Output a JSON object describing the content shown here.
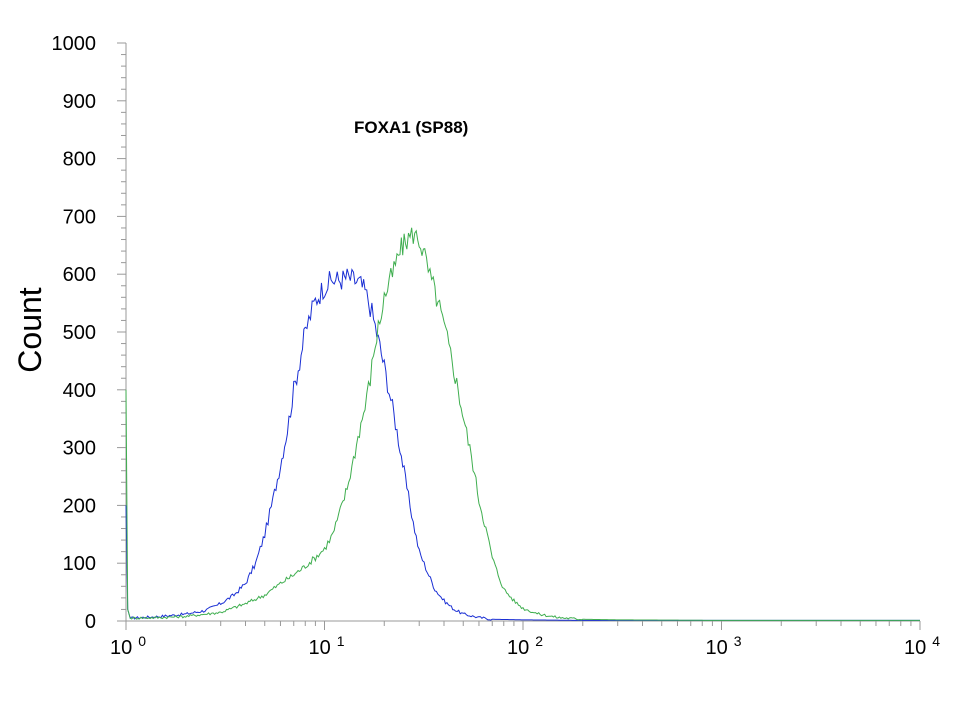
{
  "chart_data": {
    "type": "line",
    "title": "FOXA1 (SP88)",
    "xlabel": "",
    "ylabel": "Count",
    "x_scale": "log",
    "xlim": [
      1,
      10000
    ],
    "ylim": [
      0,
      1000
    ],
    "grid": false,
    "y_ticks": [
      0,
      100,
      200,
      300,
      400,
      500,
      600,
      700,
      800,
      900,
      1000
    ],
    "x_ticks": [
      {
        "value": 1,
        "base": "10",
        "exp": "0"
      },
      {
        "value": 10,
        "base": "10",
        "exp": "1"
      },
      {
        "value": 100,
        "base": "10",
        "exp": "2"
      },
      {
        "value": 1000,
        "base": "10",
        "exp": "3"
      },
      {
        "value": 10000,
        "base": "10",
        "exp": "4"
      }
    ],
    "series": [
      {
        "color": "#1a2fd4",
        "points": [
          [
            1.0,
            200
          ],
          [
            1.02,
            20
          ],
          [
            1.05,
            5
          ],
          [
            1.2,
            6
          ],
          [
            1.5,
            8
          ],
          [
            2.0,
            12
          ],
          [
            2.5,
            18
          ],
          [
            3.0,
            30
          ],
          [
            3.5,
            45
          ],
          [
            4.0,
            65
          ],
          [
            4.5,
            100
          ],
          [
            5.0,
            150
          ],
          [
            5.5,
            210
          ],
          [
            6.0,
            270
          ],
          [
            6.5,
            330
          ],
          [
            7.0,
            400
          ],
          [
            7.5,
            450
          ],
          [
            8.0,
            500
          ],
          [
            8.5,
            530
          ],
          [
            9.0,
            555
          ],
          [
            10.0,
            580
          ],
          [
            11.0,
            590
          ],
          [
            12.0,
            590
          ],
          [
            13.0,
            595
          ],
          [
            14.0,
            590
          ],
          [
            15.0,
            585
          ],
          [
            16.0,
            570
          ],
          [
            17.0,
            545
          ],
          [
            18.0,
            510
          ],
          [
            19.0,
            475
          ],
          [
            20.0,
            440
          ],
          [
            22.0,
            370
          ],
          [
            24.0,
            300
          ],
          [
            26.0,
            230
          ],
          [
            28.0,
            170
          ],
          [
            30.0,
            120
          ],
          [
            33.0,
            85
          ],
          [
            36.0,
            55
          ],
          [
            40.0,
            35
          ],
          [
            45.0,
            20
          ],
          [
            50.0,
            12
          ],
          [
            60.0,
            6
          ],
          [
            70.0,
            3
          ],
          [
            100.0,
            2
          ],
          [
            200.0,
            1
          ],
          [
            1000.0,
            1
          ],
          [
            10000.0,
            1
          ]
        ]
      },
      {
        "color": "#3fae4f",
        "points": [
          [
            1.0,
            400
          ],
          [
            1.02,
            20
          ],
          [
            1.05,
            5
          ],
          [
            1.5,
            6
          ],
          [
            2.0,
            8
          ],
          [
            3.0,
            15
          ],
          [
            4.0,
            30
          ],
          [
            5.0,
            45
          ],
          [
            6.0,
            65
          ],
          [
            7.0,
            80
          ],
          [
            8.0,
            95
          ],
          [
            9.0,
            110
          ],
          [
            10.0,
            125
          ],
          [
            11.0,
            150
          ],
          [
            12.0,
            190
          ],
          [
            13.0,
            230
          ],
          [
            14.0,
            280
          ],
          [
            15.0,
            330
          ],
          [
            16.0,
            370
          ],
          [
            17.0,
            420
          ],
          [
            18.0,
            480
          ],
          [
            19.0,
            520
          ],
          [
            20.0,
            560
          ],
          [
            22.0,
            600
          ],
          [
            24.0,
            640
          ],
          [
            26.0,
            660
          ],
          [
            28.0,
            670
          ],
          [
            30.0,
            660
          ],
          [
            32.0,
            630
          ],
          [
            34.0,
            595
          ],
          [
            36.0,
            570
          ],
          [
            38.0,
            540
          ],
          [
            40.0,
            510
          ],
          [
            44.0,
            450
          ],
          [
            48.0,
            385
          ],
          [
            52.0,
            325
          ],
          [
            56.0,
            270
          ],
          [
            60.0,
            210
          ],
          [
            65.0,
            160
          ],
          [
            70.0,
            110
          ],
          [
            75.0,
            80
          ],
          [
            80.0,
            55
          ],
          [
            90.0,
            35
          ],
          [
            100.0,
            22
          ],
          [
            120.0,
            12
          ],
          [
            150.0,
            6
          ],
          [
            200.0,
            3
          ],
          [
            300.0,
            2
          ],
          [
            1000.0,
            1
          ],
          [
            10000.0,
            1
          ]
        ]
      }
    ]
  }
}
